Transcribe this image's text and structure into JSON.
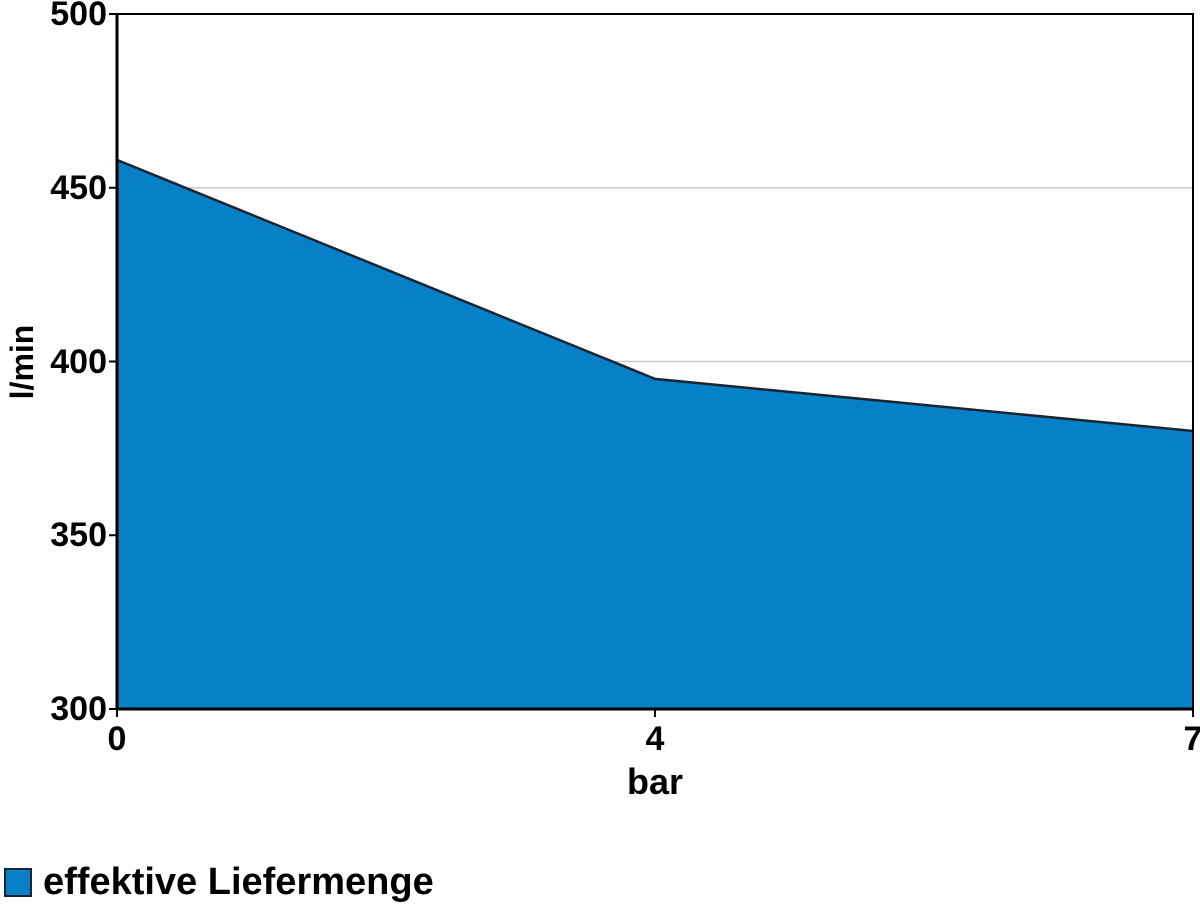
{
  "chart_data": {
    "type": "area",
    "title": "",
    "xlabel": "bar",
    "ylabel": "l/min",
    "categories": [
      "0",
      "4",
      "7"
    ],
    "x": [
      0,
      4,
      7
    ],
    "series": [
      {
        "name": "effektive Liefermenge",
        "values": [
          458,
          395,
          380
        ]
      }
    ],
    "ylim": [
      300,
      500
    ],
    "y_ticks": [
      500,
      450,
      400,
      350,
      300
    ],
    "grid": "horizontal-major",
    "legend_position": "bottom-left",
    "colors": {
      "area_fill": "#0680c6",
      "area_line": "#1a2430",
      "gridline": "#c9c9c9",
      "axis": "#000000",
      "background": "#ffffff"
    }
  },
  "legend": {
    "label": "effektive Liefermenge"
  }
}
